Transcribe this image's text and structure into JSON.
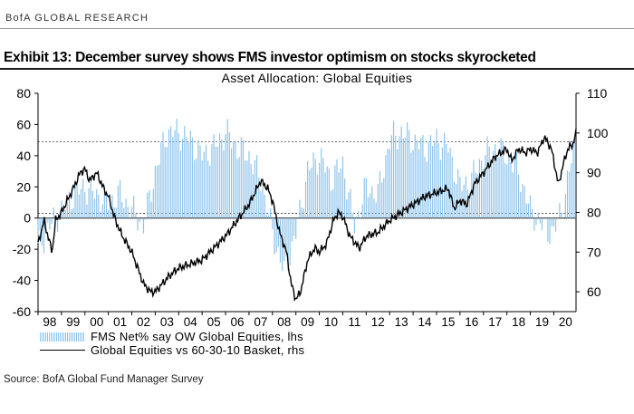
{
  "header": {
    "brand": "BofA GLOBAL RESEARCH",
    "exhibit_title": "Exhibit 13: December survey shows FMS investor optimism on stocks skyrocketed"
  },
  "footer": {
    "source": "Source: BofA Global Fund Manager Survey"
  },
  "colors": {
    "bars": "#8fc3ea",
    "line": "#000000",
    "reference": "#444444"
  },
  "chart_data": {
    "type": "bar",
    "title": "Asset Allocation: Global Equities",
    "x_tick_labels": [
      "98",
      "99",
      "00",
      "01",
      "02",
      "03",
      "04",
      "05",
      "06",
      "07",
      "08",
      "09",
      "10",
      "11",
      "12",
      "13",
      "14",
      "15",
      "16",
      "17",
      "18",
      "19",
      "20"
    ],
    "x_start_year": 1998,
    "x_end_year": 2020.95,
    "left_axis": {
      "min": -60,
      "max": 80,
      "ticks": [
        -60,
        -40,
        -20,
        0,
        20,
        40,
        60,
        80
      ]
    },
    "right_axis": {
      "min": 55,
      "max": 110,
      "ticks": [
        60,
        70,
        80,
        90,
        100,
        110
      ]
    },
    "reference_lines_lhs": [
      49,
      3
    ],
    "legend_position": "bottom-left",
    "series": [
      {
        "name": "FMS Net% say OW Global Equities, lhs",
        "type": "bar",
        "axis": "left",
        "points": [
          [
            1998.0,
            -20
          ],
          [
            1998.5,
            -5
          ],
          [
            1999.0,
            5
          ],
          [
            1999.5,
            15
          ],
          [
            2000.0,
            20
          ],
          [
            2000.5,
            15
          ],
          [
            2001.0,
            10
          ],
          [
            2001.5,
            15
          ],
          [
            2002.0,
            5
          ],
          [
            2002.5,
            -5
          ],
          [
            2003.0,
            30
          ],
          [
            2003.5,
            55
          ],
          [
            2004.0,
            55
          ],
          [
            2004.5,
            50
          ],
          [
            2005.0,
            40
          ],
          [
            2005.5,
            45
          ],
          [
            2006.0,
            55
          ],
          [
            2006.5,
            45
          ],
          [
            2007.0,
            40
          ],
          [
            2007.5,
            25
          ],
          [
            2008.0,
            -10
          ],
          [
            2008.5,
            -35
          ],
          [
            2009.0,
            -10
          ],
          [
            2009.5,
            30
          ],
          [
            2010.0,
            40
          ],
          [
            2010.5,
            25
          ],
          [
            2011.0,
            35
          ],
          [
            2011.5,
            -5
          ],
          [
            2012.0,
            20
          ],
          [
            2012.5,
            15
          ],
          [
            2013.0,
            50
          ],
          [
            2013.5,
            55
          ],
          [
            2014.0,
            50
          ],
          [
            2014.5,
            45
          ],
          [
            2015.0,
            50
          ],
          [
            2015.5,
            45
          ],
          [
            2016.0,
            20
          ],
          [
            2016.5,
            25
          ],
          [
            2017.0,
            40
          ],
          [
            2017.5,
            45
          ],
          [
            2018.0,
            40
          ],
          [
            2018.5,
            30
          ],
          [
            2019.0,
            5
          ],
          [
            2019.5,
            -5
          ],
          [
            2020.0,
            -10
          ],
          [
            2020.5,
            15
          ],
          [
            2020.95,
            55
          ]
        ]
      },
      {
        "name": "Global Equities vs 60-30-10 Basket, rhs",
        "type": "line",
        "axis": "right",
        "points": [
          [
            1998.0,
            72
          ],
          [
            1998.25,
            78
          ],
          [
            1998.6,
            70
          ],
          [
            1998.75,
            78
          ],
          [
            1999.0,
            80
          ],
          [
            1999.5,
            86
          ],
          [
            1999.8,
            90
          ],
          [
            2000.0,
            91
          ],
          [
            2000.2,
            88
          ],
          [
            2000.5,
            90
          ],
          [
            2000.8,
            86
          ],
          [
            2001.0,
            84
          ],
          [
            2001.3,
            78
          ],
          [
            2001.6,
            74
          ],
          [
            2001.8,
            72
          ],
          [
            2002.0,
            70
          ],
          [
            2002.5,
            62
          ],
          [
            2002.8,
            60
          ],
          [
            2003.0,
            60
          ],
          [
            2003.3,
            62
          ],
          [
            2003.6,
            64
          ],
          [
            2004.0,
            66
          ],
          [
            2004.5,
            67
          ],
          [
            2005.0,
            68
          ],
          [
            2005.5,
            71
          ],
          [
            2006.0,
            74
          ],
          [
            2006.5,
            78
          ],
          [
            2007.0,
            82
          ],
          [
            2007.5,
            88
          ],
          [
            2007.8,
            86
          ],
          [
            2008.0,
            83
          ],
          [
            2008.3,
            75
          ],
          [
            2008.6,
            70
          ],
          [
            2008.8,
            62
          ],
          [
            2009.0,
            58
          ],
          [
            2009.2,
            60
          ],
          [
            2009.5,
            68
          ],
          [
            2009.8,
            71
          ],
          [
            2010.0,
            70
          ],
          [
            2010.3,
            72
          ],
          [
            2010.6,
            78
          ],
          [
            2010.8,
            80
          ],
          [
            2011.0,
            79
          ],
          [
            2011.3,
            74
          ],
          [
            2011.7,
            71
          ],
          [
            2012.0,
            74
          ],
          [
            2012.5,
            75
          ],
          [
            2013.0,
            78
          ],
          [
            2013.5,
            80
          ],
          [
            2014.0,
            82
          ],
          [
            2014.5,
            84
          ],
          [
            2015.0,
            85
          ],
          [
            2015.5,
            86
          ],
          [
            2015.75,
            81
          ],
          [
            2016.0,
            83
          ],
          [
            2016.3,
            82
          ],
          [
            2016.6,
            87
          ],
          [
            2017.0,
            90
          ],
          [
            2017.5,
            94
          ],
          [
            2018.0,
            96
          ],
          [
            2018.2,
            93
          ],
          [
            2018.5,
            96
          ],
          [
            2018.8,
            95
          ],
          [
            2019.0,
            96
          ],
          [
            2019.3,
            95
          ],
          [
            2019.6,
            99
          ],
          [
            2019.9,
            96
          ],
          [
            2020.0,
            93
          ],
          [
            2020.2,
            87
          ],
          [
            2020.4,
            92
          ],
          [
            2020.6,
            96
          ],
          [
            2020.8,
            97
          ],
          [
            2020.95,
            100
          ]
        ]
      }
    ]
  }
}
